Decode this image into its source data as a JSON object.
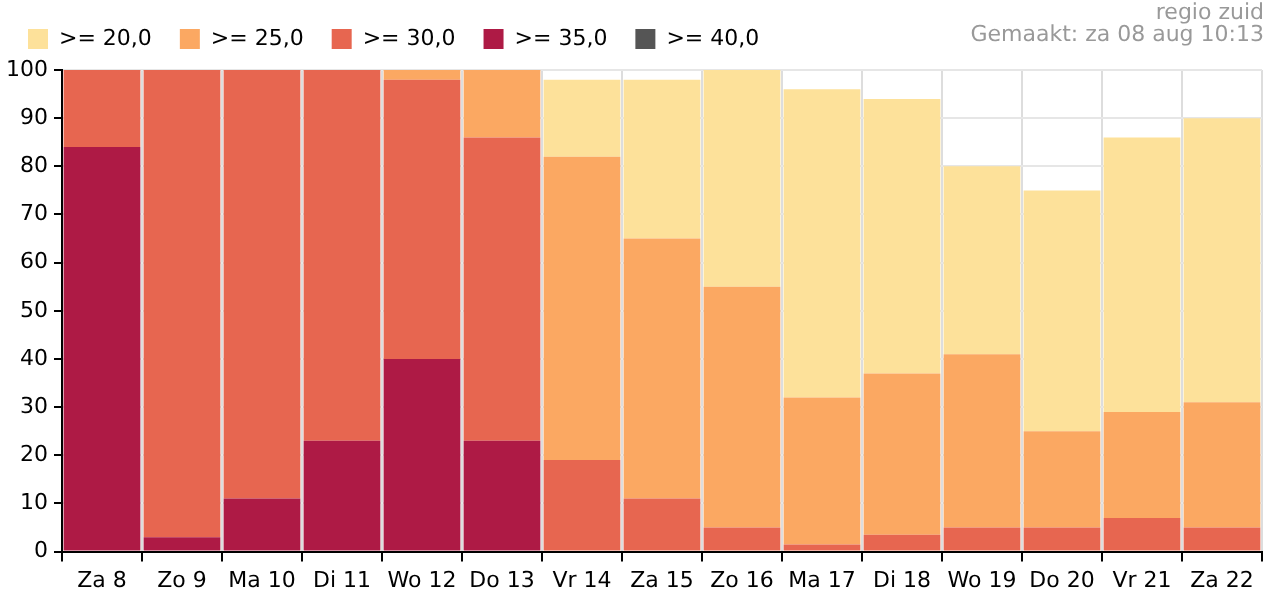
{
  "chart_data": {
    "type": "bar",
    "stacked": true,
    "categories": [
      "Za 8",
      "Zo 9",
      "Ma 10",
      "Di 11",
      "Wo 12",
      "Do 13",
      "Vr 14",
      "Za 15",
      "Zo 16",
      "Ma 17",
      "Di 18",
      "Wo 19",
      "Do 20",
      "Vr 21",
      "Za 22"
    ],
    "series": [
      {
        "name": ">= 40,0",
        "color": "#555555",
        "values": [
          0,
          0,
          0,
          0,
          0,
          0,
          0,
          0,
          0,
          0,
          0,
          0,
          0,
          0,
          0
        ]
      },
      {
        "name": ">= 35,0",
        "color": "#ae1a45",
        "values": [
          84,
          3,
          11,
          23,
          40,
          23,
          0,
          0,
          0,
          0,
          0,
          0,
          0,
          0,
          0
        ]
      },
      {
        "name": ">= 30,0",
        "color": "#e76650",
        "values": [
          16,
          97,
          89,
          77,
          58,
          63,
          19,
          11,
          5,
          1.5,
          3.5,
          5,
          5,
          7,
          5
        ]
      },
      {
        "name": ">= 25,0",
        "color": "#fba862",
        "values": [
          0,
          0,
          0,
          0,
          2,
          14,
          63,
          54,
          50,
          30.5,
          33.5,
          36,
          20,
          22,
          26
        ]
      },
      {
        "name": ">= 20,0",
        "color": "#fde19a",
        "values": [
          0,
          0,
          0,
          0,
          0,
          0,
          16,
          33,
          45,
          64,
          57,
          39,
          50,
          57,
          59
        ]
      }
    ],
    "ylim": [
      0,
      100
    ],
    "yticks": [
      0,
      10,
      20,
      30,
      40,
      50,
      60,
      70,
      80,
      90,
      100
    ],
    "grid": true,
    "legend": "top left",
    "annotations": [
      "regio zuid",
      "Gemaakt: za 08 aug 10:13"
    ]
  }
}
